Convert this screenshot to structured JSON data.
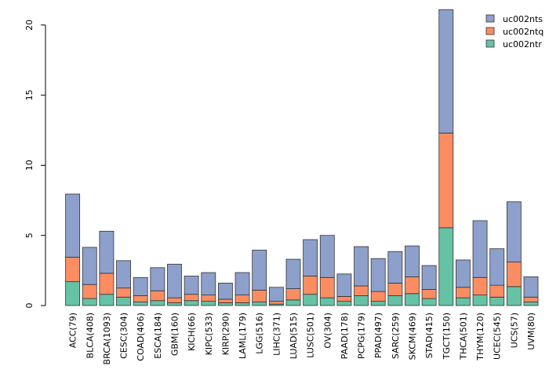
{
  "chart_data": {
    "type": "bar",
    "stacked": true,
    "title": "",
    "xlabel": "",
    "ylabel": "",
    "ylim": [
      0,
      21
    ],
    "yticks": [
      0,
      5,
      10,
      15,
      20
    ],
    "legend_position": "top-right",
    "categories": [
      "ACC(79)",
      "BLCA(408)",
      "BRCA(1093)",
      "CESC(304)",
      "COAD(406)",
      "ESCA(184)",
      "GBM(160)",
      "KICH(66)",
      "KIPC(533)",
      "KIRP(290)",
      "LAML(179)",
      "LGG(516)",
      "LIHC(371)",
      "LUAD(515)",
      "LUSC(501)",
      "OV(304)",
      "PAAD(178)",
      "PCPG(179)",
      "PPAD(497)",
      "SARC(259)",
      "SKCM(469)",
      "STAD(415)",
      "TGCT(150)",
      "THCA(501)",
      "THYM(120)",
      "UCEC(545)",
      "UCS(57)",
      "UVM(80)"
    ],
    "series": [
      {
        "name": "uc002ntr",
        "color": "#66c2a5",
        "values": [
          1.7,
          0.5,
          0.8,
          0.6,
          0.25,
          0.35,
          0.2,
          0.35,
          0.3,
          0.2,
          0.2,
          0.25,
          0.1,
          0.4,
          0.8,
          0.55,
          0.3,
          0.7,
          0.3,
          0.7,
          0.85,
          0.5,
          5.55,
          0.55,
          0.75,
          0.6,
          1.35,
          0.25
        ]
      },
      {
        "name": "uc002ntq",
        "color": "#fc8d62",
        "values": [
          1.75,
          1.0,
          1.5,
          0.65,
          0.45,
          0.7,
          0.35,
          0.45,
          0.45,
          0.25,
          0.55,
          0.85,
          0.2,
          0.8,
          1.3,
          1.45,
          0.35,
          0.7,
          0.7,
          0.9,
          1.2,
          0.65,
          6.75,
          0.75,
          1.25,
          0.85,
          1.75,
          0.35
        ]
      },
      {
        "name": "uc002nts",
        "color": "#8da0cb",
        "values": [
          4.5,
          2.65,
          3.0,
          1.95,
          1.3,
          1.65,
          2.4,
          1.3,
          1.6,
          1.15,
          1.6,
          2.85,
          1.0,
          2.1,
          2.6,
          3.0,
          1.6,
          2.8,
          2.35,
          2.25,
          2.2,
          1.7,
          8.8,
          1.95,
          4.05,
          2.6,
          4.3,
          1.45
        ]
      }
    ],
    "legend_order": [
      "uc002nts",
      "uc002ntq",
      "uc002ntr"
    ]
  }
}
